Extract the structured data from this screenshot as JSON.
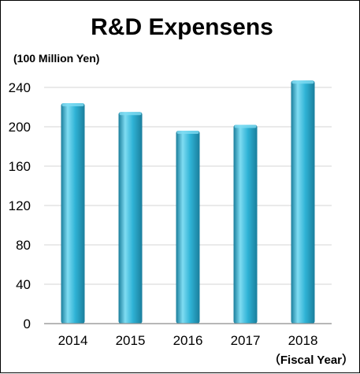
{
  "chart_data": {
    "type": "bar",
    "title": "R&D Expensens",
    "unit_label": "(100 Million Yen)",
    "xlabel": "（Fiscal Year）",
    "ylabel": "",
    "categories": [
      "2014",
      "2015",
      "2016",
      "2017",
      "2018"
    ],
    "values": [
      224,
      215,
      196,
      202,
      247
    ],
    "ylim": [
      0,
      240
    ],
    "yticks": [
      0,
      40,
      80,
      120,
      160,
      200,
      240
    ],
    "grid": true,
    "legend": "none",
    "bar_color": "#2fb3d6",
    "bar_highlight": "#7fdcf2",
    "bar_shadow": "#1a7e9c"
  }
}
